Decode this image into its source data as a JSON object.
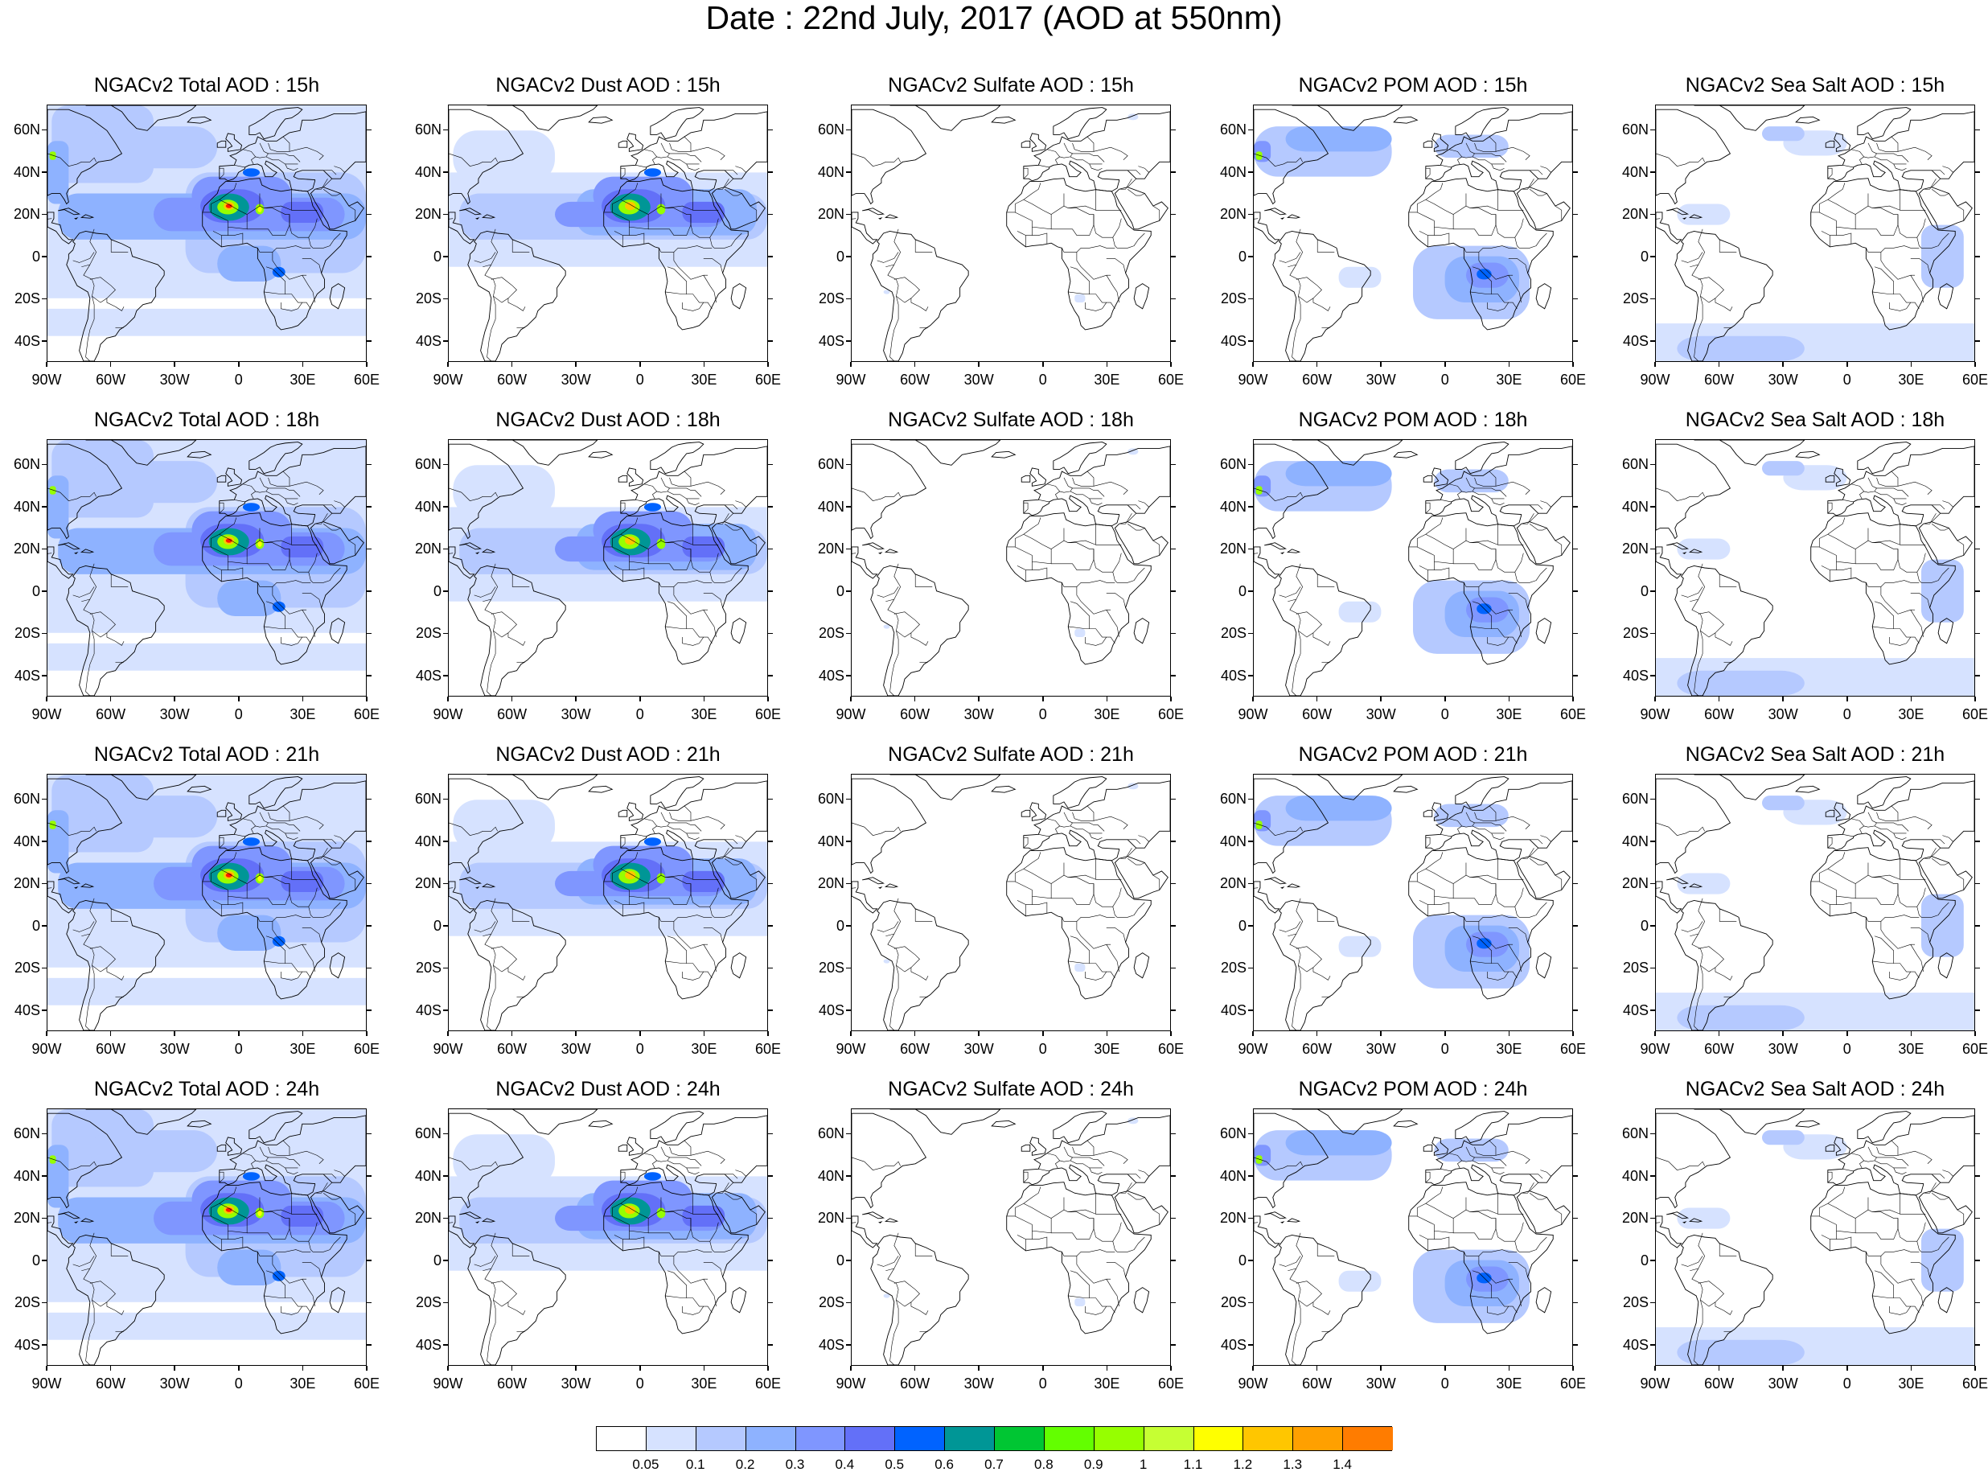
{
  "title": "Date : 22nd July, 2017 (AOD at 550nm)",
  "lat_ticks": [
    "60N",
    "40N",
    "20N",
    "0",
    "20S",
    "40S"
  ],
  "lon_ticks": [
    "90W",
    "60W",
    "30W",
    "0",
    "30E",
    "60E"
  ],
  "panels": [
    {
      "title": "NGACv2 Total AOD : 15h",
      "field": "total",
      "hour": 15
    },
    {
      "title": "NGACv2 Dust AOD : 15h",
      "field": "dust",
      "hour": 15
    },
    {
      "title": "NGACv2 Sulfate AOD : 15h",
      "field": "sulfate",
      "hour": 15
    },
    {
      "title": "NGACv2 POM AOD : 15h",
      "field": "pom",
      "hour": 15
    },
    {
      "title": "NGACv2 Sea Salt AOD : 15h",
      "field": "seasalt",
      "hour": 15
    },
    {
      "title": "NGACv2 Total AOD : 18h",
      "field": "total",
      "hour": 18
    },
    {
      "title": "NGACv2 Dust AOD : 18h",
      "field": "dust",
      "hour": 18
    },
    {
      "title": "NGACv2 Sulfate AOD : 18h",
      "field": "sulfate",
      "hour": 18
    },
    {
      "title": "NGACv2 POM AOD : 18h",
      "field": "pom",
      "hour": 18
    },
    {
      "title": "NGACv2 Sea Salt AOD : 18h",
      "field": "seasalt",
      "hour": 18
    },
    {
      "title": "NGACv2 Total AOD : 21h",
      "field": "total",
      "hour": 21
    },
    {
      "title": "NGACv2 Dust AOD : 21h",
      "field": "dust",
      "hour": 21
    },
    {
      "title": "NGACv2 Sulfate AOD : 21h",
      "field": "sulfate",
      "hour": 21
    },
    {
      "title": "NGACv2 POM AOD : 21h",
      "field": "pom",
      "hour": 21
    },
    {
      "title": "NGACv2 Sea Salt AOD : 21h",
      "field": "seasalt",
      "hour": 21
    },
    {
      "title": "NGACv2 Total AOD : 24h",
      "field": "total",
      "hour": 24
    },
    {
      "title": "NGACv2 Dust AOD : 24h",
      "field": "dust",
      "hour": 24
    },
    {
      "title": "NGACv2 Sulfate AOD : 24h",
      "field": "sulfate",
      "hour": 24
    },
    {
      "title": "NGACv2 POM AOD : 24h",
      "field": "pom",
      "hour": 24
    },
    {
      "title": "NGACv2 Sea Salt  AOD : 24h",
      "field": "seasalt",
      "hour": 24
    }
  ],
  "colorbar": {
    "labels": [
      "0.05",
      "0.1",
      "0.2",
      "0.3",
      "0.4",
      "0.5",
      "0.6",
      "0.7",
      "0.8",
      "0.9",
      "1",
      "1.1",
      "1.2",
      "1.3",
      "1.4"
    ],
    "colors": [
      "#ffffff",
      "#d6e2ff",
      "#b5c9ff",
      "#8eb2ff",
      "#7f96ff",
      "#6370f8",
      "#0063ff",
      "#009696",
      "#00c633",
      "#63ff00",
      "#96ff00",
      "#c6ff33",
      "#ffff00",
      "#ffc600",
      "#ffa000",
      "#ff7c00",
      "#ff1900"
    ]
  }
}
